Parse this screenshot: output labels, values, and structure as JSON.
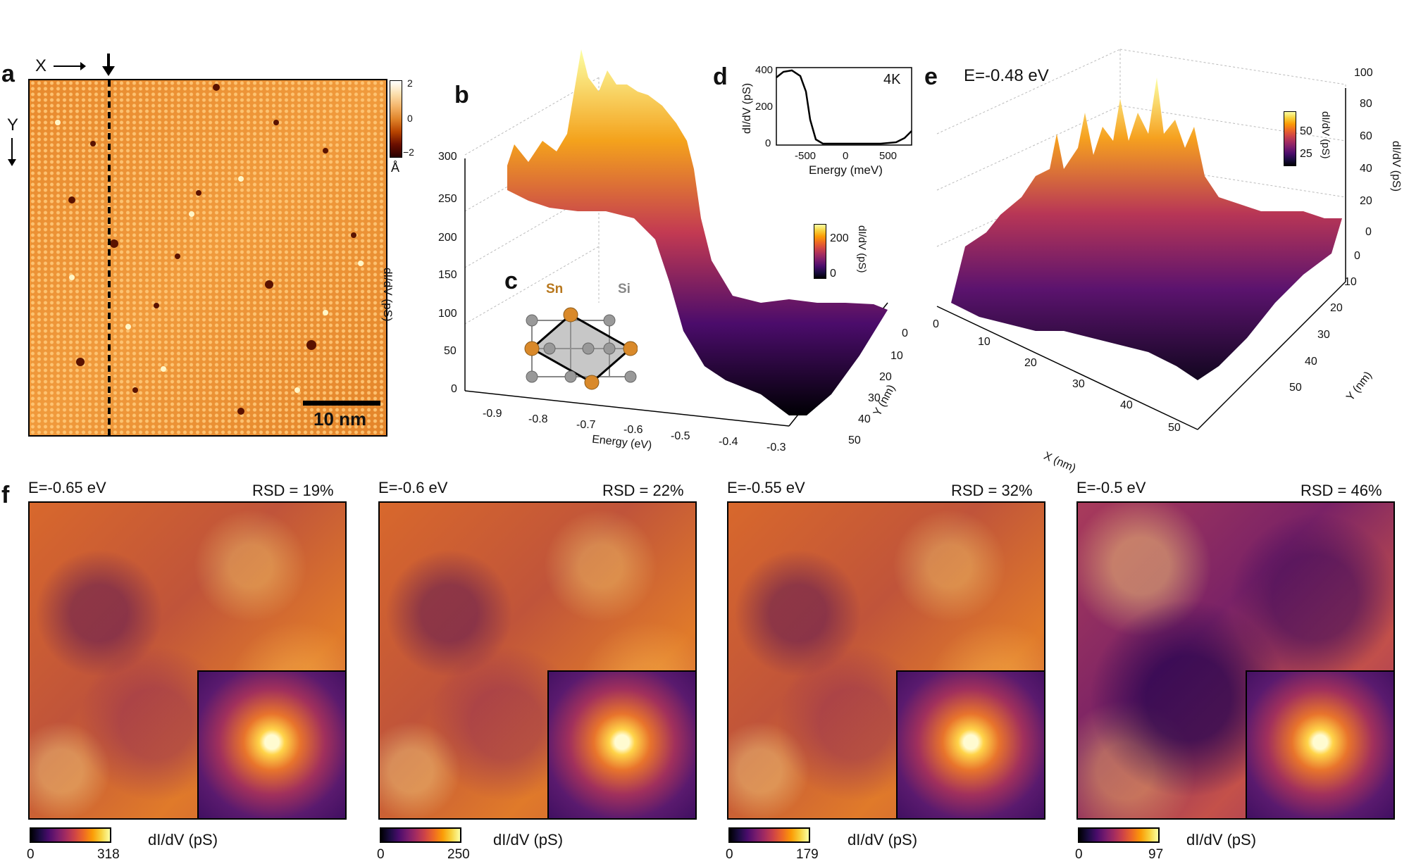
{
  "panel_a": {
    "label": "a",
    "x_axis": "X",
    "y_axis": "Y",
    "scalebar": "10 nm",
    "colorbar_ticks": [
      "2",
      "0",
      "−2"
    ],
    "colorbar_unit": "Å"
  },
  "panel_b": {
    "label": "b",
    "ylabel": "dI/dV (pS)",
    "xlabel": "Energy (eV)",
    "ylabel_depth": "Y (nm)",
    "colorbar_label": "dI/dV (pS)",
    "colorbar_ticks": [
      "200",
      "0"
    ]
  },
  "panel_c": {
    "label": "c",
    "sn_label": "Sn",
    "si_label": "Si"
  },
  "panel_d": {
    "label": "d",
    "temp": "4K",
    "ylabel": "dI/dV (pS)",
    "xlabel": "Energy (meV)"
  },
  "panel_e": {
    "label": "e",
    "energy": "E=-0.48 eV",
    "xlabel": "X (nm)",
    "ylabel": "Y (nm)",
    "zlabel": "dI/dV (pS)",
    "colorbar_label": "dI/dV (pS)",
    "colorbar_ticks": [
      "50",
      "25"
    ]
  },
  "panel_f": {
    "label": "f",
    "maps": [
      {
        "energy": "E=-0.65 eV",
        "rsd": "RSD = 19%",
        "cmin": "0",
        "cmax": "318",
        "unit": "dI/dV (pS)"
      },
      {
        "energy": "E=-0.6 eV",
        "rsd": "RSD = 22%",
        "cmin": "0",
        "cmax": "250",
        "unit": "dI/dV (pS)"
      },
      {
        "energy": "E=-0.55 eV",
        "rsd": "RSD = 32%",
        "cmin": "0",
        "cmax": "179",
        "unit": "dI/dV (pS)"
      },
      {
        "energy": "E=-0.5 eV",
        "rsd": "RSD = 46%",
        "cmin": "0",
        "cmax": "97",
        "unit": "dI/dV (pS)"
      }
    ]
  },
  "chart_data": [
    {
      "type": "line",
      "title": "",
      "xlabel": "Energy (meV)",
      "ylabel": "dI/dV (pS)",
      "x": [
        -800,
        -700,
        -600,
        -550,
        -500,
        -450,
        -400,
        -200,
        0,
        200,
        400,
        600,
        700,
        800
      ],
      "series": [
        {
          "values": [
            360,
            390,
            350,
            250,
            80,
            10,
            2,
            0,
            0,
            0,
            0,
            5,
            30,
            80
          ]
        }
      ],
      "xlim": [
        -850,
        850
      ],
      "ylim": [
        0,
        420
      ],
      "x_ticks": [
        "-500",
        "0",
        "500"
      ],
      "y_ticks": [
        "0",
        "200",
        "400"
      ]
    },
    {
      "type": "area",
      "title": "",
      "xlabel": "Energy (eV)",
      "ylabel": "dI/dV (pS)",
      "x": [
        -0.9,
        -0.8,
        -0.7,
        -0.6,
        -0.5,
        -0.4,
        -0.3
      ],
      "series": [
        {
          "values": [
            250,
            270,
            260,
            200,
            80,
            20,
            10
          ]
        }
      ],
      "xlim": [
        -0.9,
        -0.3
      ],
      "ylim": [
        0,
        300
      ],
      "x_ticks": [
        "-0.9",
        "-0.8",
        "-0.7",
        "-0.6",
        "-0.5",
        "-0.4",
        "-0.3"
      ],
      "y_ticks": [
        "0",
        "50",
        "100",
        "150",
        "200",
        "250",
        "300"
      ],
      "y_depth_ticks": [
        "0",
        "10",
        "20",
        "30",
        "40",
        "50"
      ]
    },
    {
      "type": "area",
      "title": "",
      "xlabel": "X (nm)",
      "ylabel": "Y (nm)",
      "zlabel": "dI/dV (pS)",
      "x_ticks": [
        "0",
        "10",
        "20",
        "30",
        "40",
        "50"
      ],
      "y_ticks": [
        "0",
        "10",
        "20",
        "30",
        "40",
        "50"
      ],
      "z_ticks": [
        "0",
        "20",
        "40",
        "60",
        "80",
        "100"
      ],
      "zlim": [
        0,
        110
      ]
    }
  ]
}
